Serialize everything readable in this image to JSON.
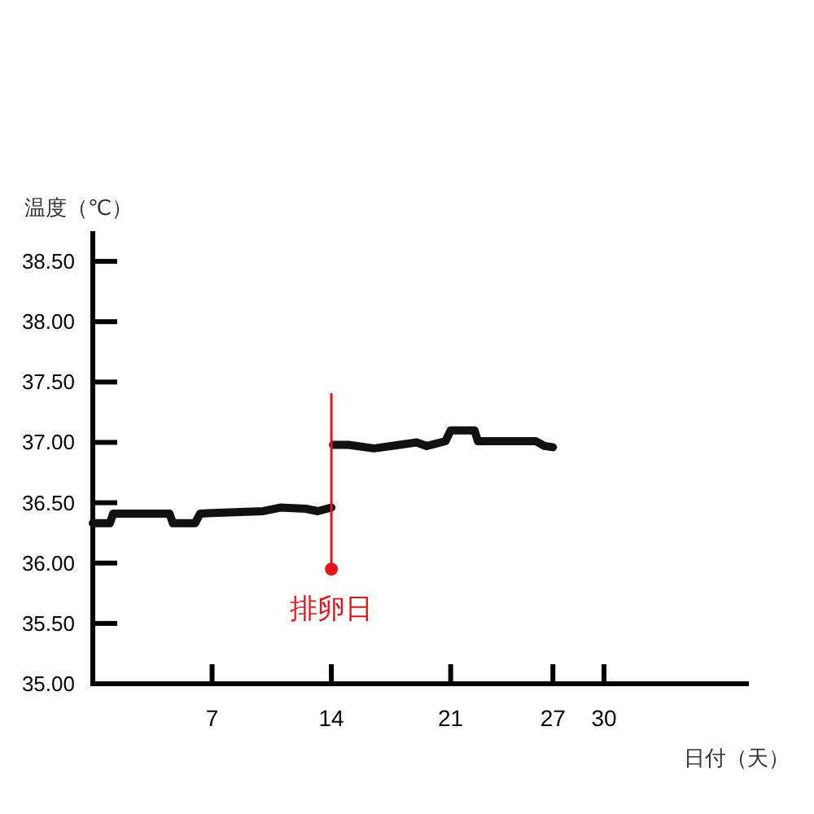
{
  "chart_data": {
    "type": "line",
    "xlabel": "日付（天）",
    "ylabel": "温度（℃）",
    "xlim": [
      0,
      38.5
    ],
    "xticks": [
      7,
      14,
      21,
      27,
      30
    ],
    "ylim": [
      35,
      38.75
    ],
    "yticks": [
      {
        "value": 35,
        "label": "35.00"
      },
      {
        "value": 35.5,
        "label": "35.50"
      },
      {
        "value": 36,
        "label": "36.00"
      },
      {
        "value": 36.5,
        "label": "36.50"
      },
      {
        "value": 37,
        "label": "37.00"
      },
      {
        "value": 37.5,
        "label": "37.50"
      },
      {
        "value": 38,
        "label": "38.00"
      },
      {
        "value": 38.5,
        "label": "38.50"
      }
    ],
    "grid": false,
    "line_style": "solid",
    "series": [
      {
        "color": "#111111",
        "x": [
          0,
          1,
          1.2,
          4.5,
          4.7,
          6,
          6.3,
          8,
          10,
          11,
          12.5,
          13.2,
          14
        ],
        "values": [
          36.33,
          36.33,
          36.41,
          36.41,
          36.33,
          36.33,
          36.41,
          36.42,
          36.43,
          36.46,
          36.45,
          36.43,
          36.46
        ]
      },
      {
        "color": "#111111",
        "x": [
          14.1,
          15,
          16.5,
          18,
          19,
          19.6,
          20.7,
          21,
          22.4,
          22.6,
          26,
          26.5,
          27
        ],
        "values": [
          36.98,
          36.98,
          36.95,
          36.98,
          37.0,
          36.97,
          37.01,
          37.1,
          37.1,
          37.01,
          37.01,
          36.97,
          36.96
        ]
      },
      {
        "color": "#e8141c",
        "x": [
          14,
          14
        ],
        "values": [
          35.95,
          37.4
        ]
      }
    ],
    "annotations": [
      {
        "text": "排卵日",
        "x": 14,
        "y": 35.95
      }
    ]
  }
}
